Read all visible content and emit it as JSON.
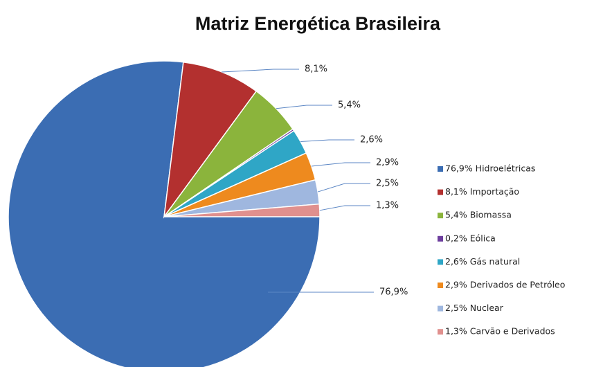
{
  "chart_data": {
    "type": "pie",
    "title": "Matriz  Energética Brasileira",
    "categories": [
      "76,9% Hidroelétricas",
      "8,1% Importação",
      "5,4% Biomassa",
      "0,2% Eólica",
      "2,6% Gás natural",
      "2,9% Derivados de Petróleo",
      "2,5% Nuclear",
      "1,3% Carvão e Derivados"
    ],
    "values": [
      76.9,
      8.1,
      5.4,
      0.2,
      2.6,
      2.9,
      2.5,
      1.3
    ],
    "value_labels": [
      "76,9%",
      "8,1%",
      "5,4%",
      null,
      "2,6%",
      "2,9%",
      "2,5%",
      "1,3%"
    ],
    "colors": [
      "#3b6db3",
      "#b3302f",
      "#8bb43c",
      "#6e3f9e",
      "#2fa6c6",
      "#ee8a1e",
      "#9fb7df",
      "#e0908e"
    ],
    "legend": "right"
  }
}
